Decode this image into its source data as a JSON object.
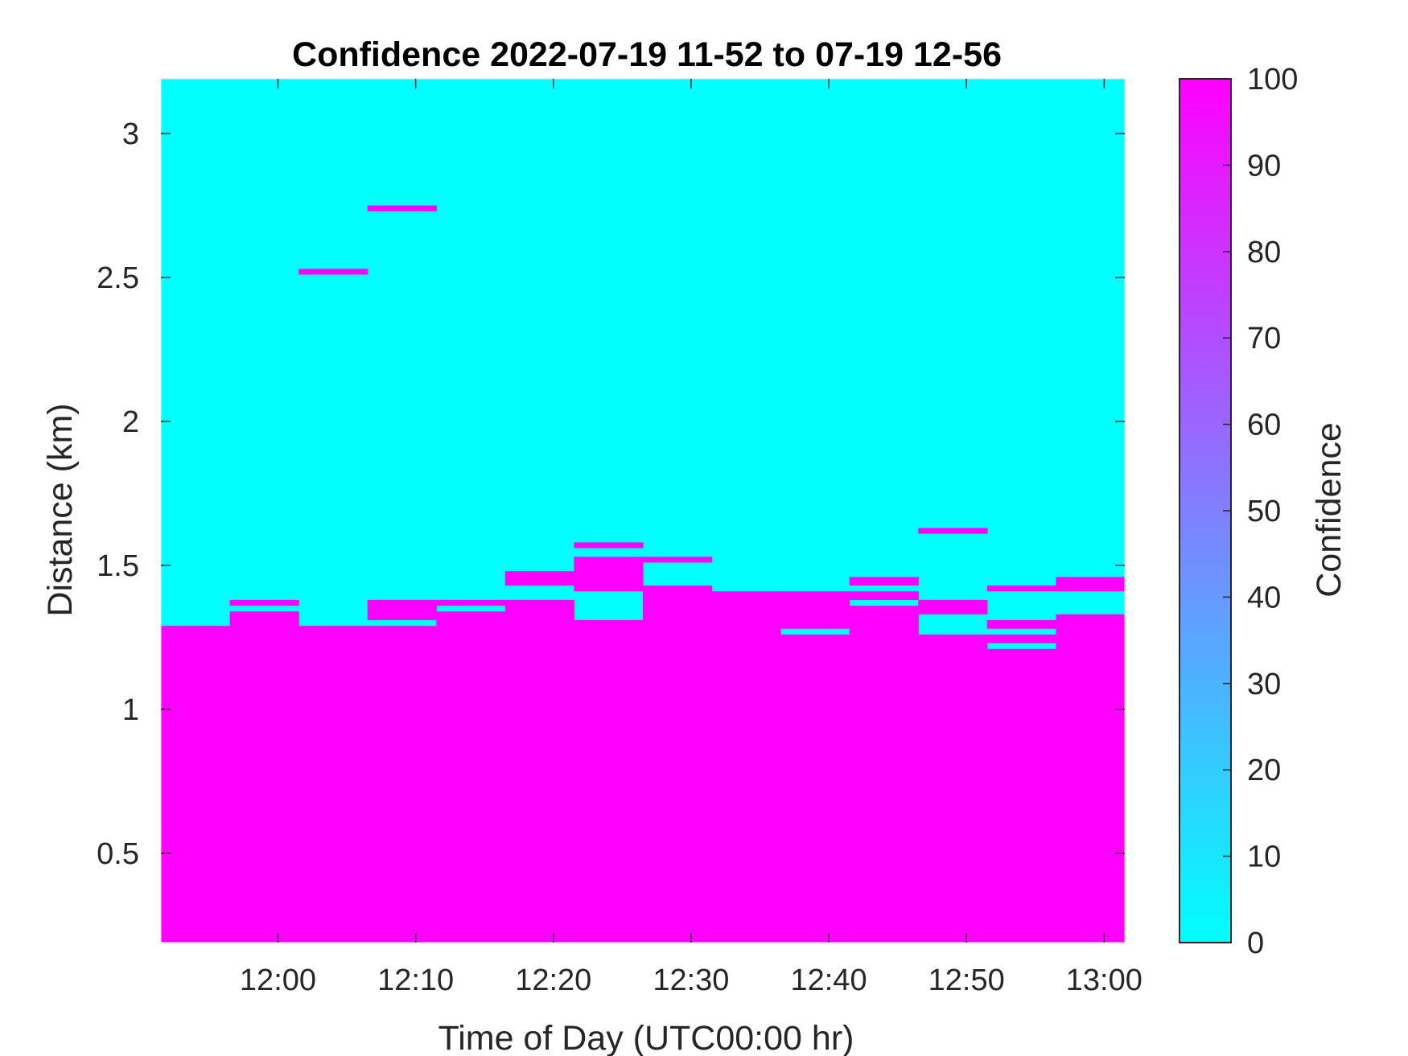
{
  "chart_data": {
    "type": "heatmap",
    "title": "Confidence 2022-07-19 11-52 to 07-19 12-56",
    "xlabel": "Time of Day (UTC00:00 hr)",
    "ylabel": "Distance (km)",
    "xlim": [
      "11:51.5",
      "13:01.5"
    ],
    "ylim": [
      0.19,
      3.19
    ],
    "x_ticks": [
      "12:00",
      "12:10",
      "12:20",
      "12:30",
      "12:40",
      "12:50",
      "13:00"
    ],
    "y_ticks": [
      "0.5",
      "1",
      "1.5",
      "2",
      "2.5",
      "3"
    ],
    "colorbar": {
      "label": "Confidence",
      "range": [
        0,
        100
      ],
      "ticks": [
        "0",
        "10",
        "20",
        "30",
        "40",
        "50",
        "60",
        "70",
        "80",
        "90",
        "100"
      ],
      "color_min": "#00ffff",
      "color_max": "#ff00ff"
    },
    "time_columns": [
      "11:52",
      "11:57",
      "12:02",
      "12:07",
      "12:12",
      "12:17",
      "12:22",
      "12:27",
      "12:32",
      "12:37",
      "12:42",
      "12:47",
      "12:52",
      "12:57"
    ],
    "column_span_min": 5,
    "background_value": 0,
    "high_confidence_cells": [
      {
        "time": "11:52",
        "ranges": [
          [
            0.19,
            1.29
          ]
        ]
      },
      {
        "time": "11:57",
        "ranges": [
          [
            0.19,
            1.34
          ],
          [
            1.36,
            1.38
          ]
        ]
      },
      {
        "time": "12:02",
        "ranges": [
          [
            0.19,
            1.29
          ],
          [
            2.51,
            2.53
          ]
        ]
      },
      {
        "time": "12:07",
        "ranges": [
          [
            0.19,
            1.29
          ],
          [
            1.31,
            1.38
          ],
          [
            2.73,
            2.75
          ]
        ]
      },
      {
        "time": "12:12",
        "ranges": [
          [
            0.19,
            1.34
          ],
          [
            1.36,
            1.38
          ]
        ]
      },
      {
        "time": "12:17",
        "ranges": [
          [
            0.19,
            1.38
          ],
          [
            1.43,
            1.48
          ]
        ]
      },
      {
        "time": "12:22",
        "ranges": [
          [
            0.19,
            1.31
          ],
          [
            1.41,
            1.53
          ],
          [
            1.56,
            1.58
          ]
        ]
      },
      {
        "time": "12:27",
        "ranges": [
          [
            0.19,
            1.43
          ],
          [
            1.51,
            1.53
          ]
        ]
      },
      {
        "time": "12:32",
        "ranges": [
          [
            0.19,
            1.41
          ]
        ]
      },
      {
        "time": "12:37",
        "ranges": [
          [
            0.19,
            1.26
          ],
          [
            1.28,
            1.41
          ]
        ]
      },
      {
        "time": "12:42",
        "ranges": [
          [
            0.19,
            1.36
          ],
          [
            1.38,
            1.41
          ],
          [
            1.43,
            1.46
          ]
        ]
      },
      {
        "time": "12:47",
        "ranges": [
          [
            0.19,
            1.26
          ],
          [
            1.33,
            1.38
          ],
          [
            1.61,
            1.63
          ]
        ]
      },
      {
        "time": "12:52",
        "ranges": [
          [
            0.19,
            1.21
          ],
          [
            1.23,
            1.26
          ],
          [
            1.28,
            1.31
          ],
          [
            1.41,
            1.43
          ]
        ]
      },
      {
        "time": "12:57",
        "ranges": [
          [
            0.19,
            1.33
          ],
          [
            1.41,
            1.46
          ]
        ]
      }
    ]
  }
}
